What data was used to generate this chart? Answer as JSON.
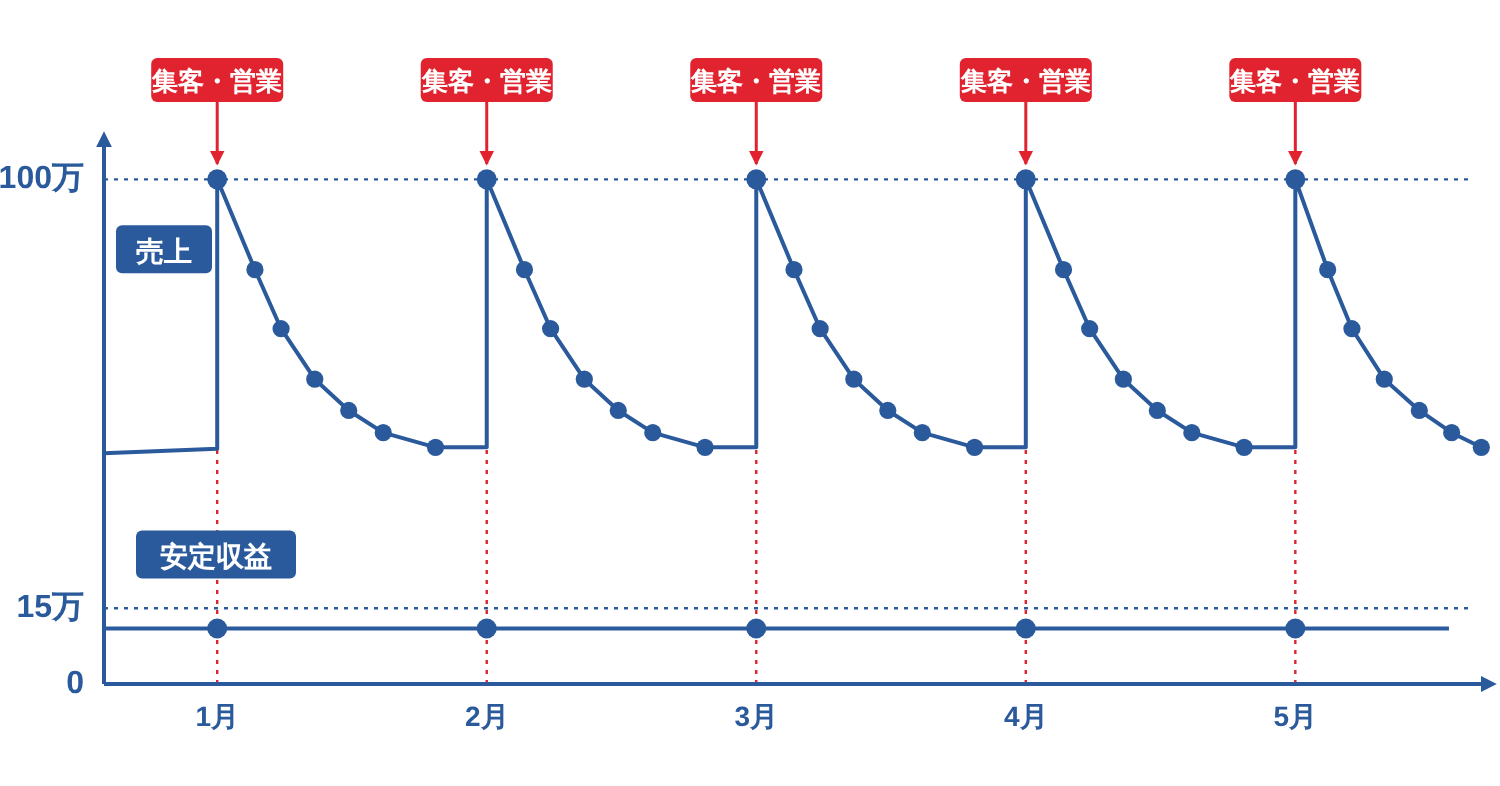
{
  "chart_data": {
    "type": "line",
    "xlim": [
      0.58,
      5.7
    ],
    "ylim": [
      0,
      107
    ],
    "xticks": [
      {
        "value": 1,
        "label": "1月"
      },
      {
        "value": 2,
        "label": "2月"
      },
      {
        "value": 3,
        "label": "3月"
      },
      {
        "value": 4,
        "label": "4月"
      },
      {
        "value": 5,
        "label": "5月"
      }
    ],
    "yticks": [
      0,
      {
        "value": 15,
        "label": "15万"
      },
      {
        "value": 100,
        "label": "100万"
      }
    ],
    "series": [
      {
        "name": "売上",
        "type": "line",
        "marker": "none",
        "color": "#2a5a9b",
        "x": [
          0.58,
          1,
          1,
          1.14,
          1.237,
          1.362,
          1.488,
          1.616,
          1.81,
          2,
          2,
          2.14,
          2.237,
          2.362,
          2.488,
          2.616,
          2.81,
          3,
          3,
          3.14,
          3.237,
          3.362,
          3.488,
          3.616,
          3.81,
          4,
          4,
          4.14,
          4.237,
          4.362,
          4.488,
          4.616,
          4.81,
          5,
          5,
          5.12,
          5.21,
          5.33,
          5.46,
          5.58,
          5.69
        ],
        "values": [
          45.7,
          46.6,
          100,
          82.1,
          70.4,
          60.4,
          54.2,
          49.8,
          46.9,
          46.9,
          100,
          82.1,
          70.4,
          60.4,
          54.2,
          49.8,
          46.9,
          46.9,
          100,
          82.1,
          70.4,
          60.4,
          54.2,
          49.8,
          46.9,
          46.9,
          100,
          82.1,
          70.4,
          60.4,
          54.2,
          49.8,
          46.9,
          46.9,
          100,
          82.1,
          70.4,
          60.4,
          54.2,
          49.8,
          46.9
        ]
      },
      {
        "type": "scatter",
        "marker": "circle",
        "color": "#2a5a9b",
        "x": [
          1,
          1.14,
          1.237,
          1.362,
          1.488,
          1.616,
          1.81,
          2,
          2.14,
          2.237,
          2.362,
          2.488,
          2.616,
          2.81,
          3,
          3.14,
          3.237,
          3.362,
          3.488,
          3.616,
          3.81,
          4,
          4.14,
          4.237,
          4.362,
          4.488,
          4.616,
          4.81,
          5,
          5.12,
          5.21,
          5.33,
          5.46,
          5.58,
          5.69
        ],
        "values": [
          100,
          82.1,
          70.4,
          60.4,
          54.2,
          49.8,
          46.9,
          100,
          82.1,
          70.4,
          60.4,
          54.2,
          49.8,
          46.9,
          100,
          82.1,
          70.4,
          60.4,
          54.2,
          49.8,
          46.9,
          100,
          82.1,
          70.4,
          60.4,
          54.2,
          49.8,
          46.9,
          100,
          82.1,
          70.4,
          60.4,
          54.2,
          49.8,
          46.9
        ]
      },
      {
        "name": "安定収益",
        "type": "line",
        "marker": "none",
        "color": "#2a5a9b",
        "x": [
          0.58,
          1,
          1.5,
          2,
          2.5,
          3,
          3.5,
          4,
          4.5,
          5,
          5.57
        ],
        "values": [
          11,
          11,
          11,
          11,
          11,
          11,
          11,
          11,
          11,
          11,
          11
        ]
      },
      {
        "type": "scatter",
        "marker": "circle",
        "color": "#2a5a9b",
        "x": [
          1,
          2,
          3,
          4,
          5
        ],
        "values": [
          11,
          11,
          11,
          11,
          11
        ]
      }
    ],
    "ref_lines": [
      {
        "axis": "y",
        "value": 100,
        "color": "#2a5a9b",
        "line_style": "dotted"
      },
      {
        "axis": "y",
        "value": 15,
        "color": "#2a5a9b",
        "line_style": "dotted"
      },
      {
        "axis": "x",
        "value": 1,
        "label": "集客・営業",
        "color": "#e0232e",
        "line_style": "dotted"
      },
      {
        "axis": "x",
        "value": 2,
        "label": "集客・営業",
        "color": "#e0232e",
        "line_style": "dotted"
      },
      {
        "axis": "x",
        "value": 3,
        "label": "集客・営業",
        "color": "#e0232e",
        "line_style": "dotted"
      },
      {
        "axis": "x",
        "value": 4,
        "label": "集客・営業",
        "color": "#e0232e",
        "line_style": "dotted"
      },
      {
        "axis": "x",
        "value": 5,
        "label": "集客・営業",
        "color": "#e0232e",
        "line_style": "dotted"
      }
    ]
  }
}
